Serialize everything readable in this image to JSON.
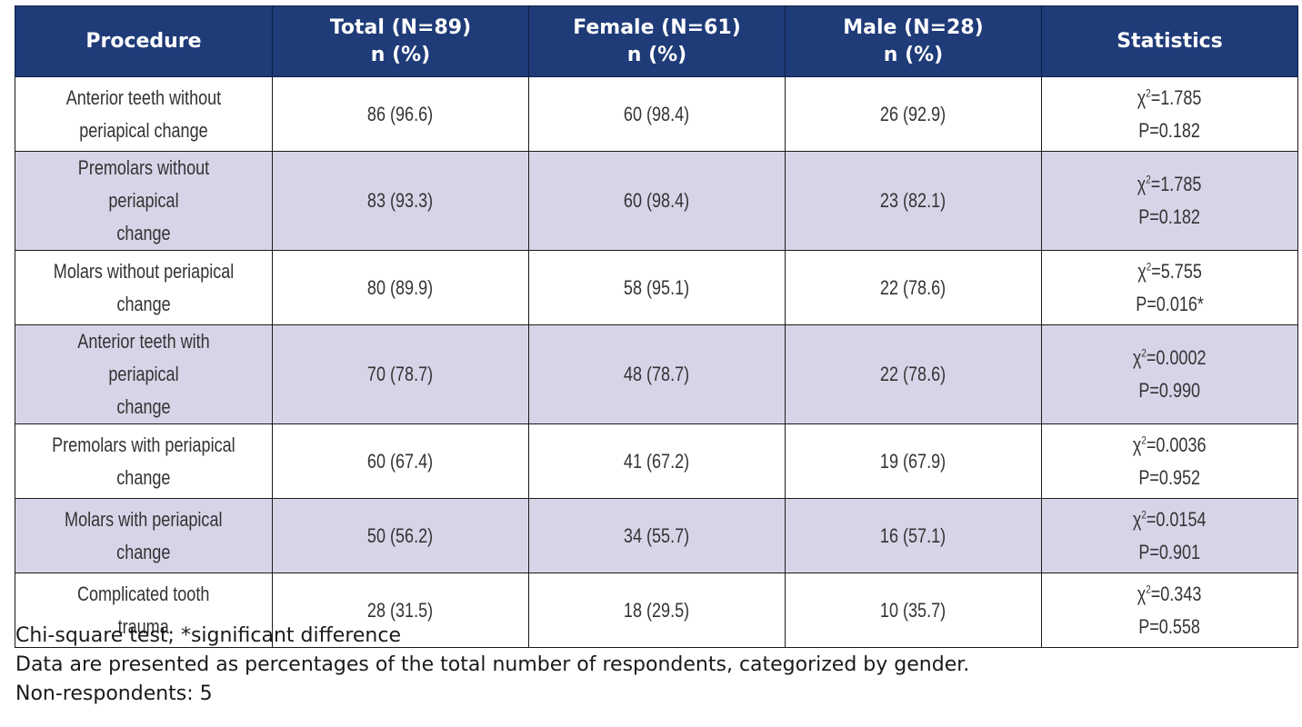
{
  "table": {
    "headers": [
      {
        "line1": "Procedure",
        "line2": ""
      },
      {
        "line1": "Total (N=89)",
        "line2": "n (%)"
      },
      {
        "line1": "Female (N=61)",
        "line2": "n (%)"
      },
      {
        "line1": "Male (N=28)",
        "line2": "n (%)"
      },
      {
        "line1": "Statistics",
        "line2": ""
      }
    ],
    "rows": [
      {
        "procedure": "Anterior teeth without\nperiapical change",
        "total": "86 (96.6)",
        "female": "60 (98.4)",
        "male": "26 (92.9)",
        "chi_symbol": "χ",
        "chi_exp": "2",
        "chi_value": "=1.785",
        "p": "P=0.182"
      },
      {
        "procedure": "Premolars without periapical\nchange",
        "total": "83 (93.3)",
        "female": "60 (98.4)",
        "male": "23 (82.1)",
        "chi_symbol": "χ",
        "chi_exp": "2",
        "chi_value": "=1.785",
        "p": "P=0.182"
      },
      {
        "procedure": "Molars without periapical\nchange",
        "total": "80 (89.9)",
        "female": "58 (95.1)",
        "male": "22 (78.6)",
        "chi_symbol": "χ",
        "chi_exp": "2",
        "chi_value": "=5.755",
        "p": "P=0.016*"
      },
      {
        "procedure": "Anterior teeth with periapical\nchange",
        "total": "70 (78.7)",
        "female": "48 (78.7)",
        "male": "22 (78.6)",
        "chi_symbol": "χ",
        "chi_exp": "2",
        "chi_value": "=0.0002",
        "p": "P=0.990"
      },
      {
        "procedure": "Premolars with periapical\nchange",
        "total": "60 (67.4)",
        "female": "41 (67.2)",
        "male": "19 (67.9)",
        "chi_symbol": "χ",
        "chi_exp": "2",
        "chi_value": "=0.0036",
        "p": "P=0.952"
      },
      {
        "procedure": "Molars with periapical\nchange",
        "total": "50 (56.2)",
        "female": "34 (55.7)",
        "male": "16 (57.1)",
        "chi_symbol": "χ",
        "chi_exp": "2",
        "chi_value": "=0.0154",
        "p": "P=0.901"
      },
      {
        "procedure": "Complicated tooth\ntrauma",
        "total": "28 (31.5)",
        "female": "18 (29.5)",
        "male": "10 (35.7)",
        "chi_symbol": "χ",
        "chi_exp": "2",
        "chi_value": "=0.343",
        "p": "P=0.558"
      }
    ]
  },
  "notes": {
    "line1": "Chi-square test; *significant difference",
    "line2": "Data are presented as percentages of the total number of respondents, categorized by gender.",
    "line3": "Non-respondents: 5"
  },
  "colors": {
    "header_bg": "#1f3b78",
    "header_text": "#ffffff",
    "row_stripe": "#d6d5e8",
    "border": "#1a1a1a"
  }
}
